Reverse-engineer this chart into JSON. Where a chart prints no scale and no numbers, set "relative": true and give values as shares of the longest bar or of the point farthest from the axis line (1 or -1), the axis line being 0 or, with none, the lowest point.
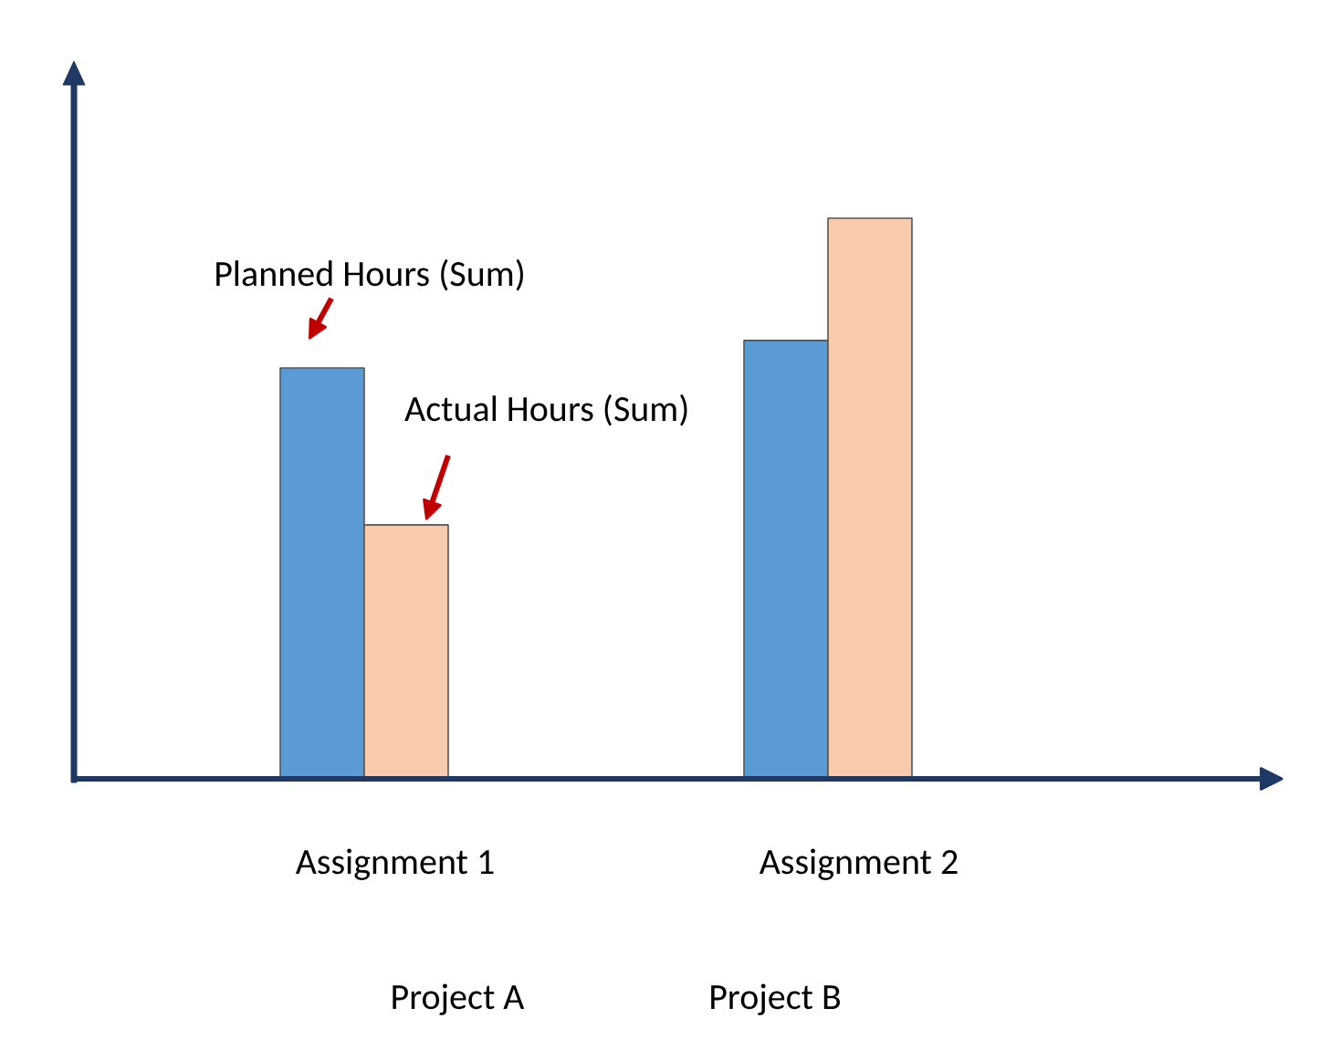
{
  "chart_data": {
    "type": "bar",
    "relative": true,
    "categories": [
      "Assignment 1",
      "Assignment 2"
    ],
    "series": [
      {
        "name": "Planned Hours (Sum)",
        "color": "#5b9bd5",
        "values": [
          0.733,
          0.782
        ]
      },
      {
        "name": "Actual Hours (Sum)",
        "color": "#f8cbad",
        "values": [
          0.453,
          1
        ]
      }
    ],
    "annotations": [
      "Project A",
      "Project B"
    ],
    "grid": false,
    "legend": false
  }
}
